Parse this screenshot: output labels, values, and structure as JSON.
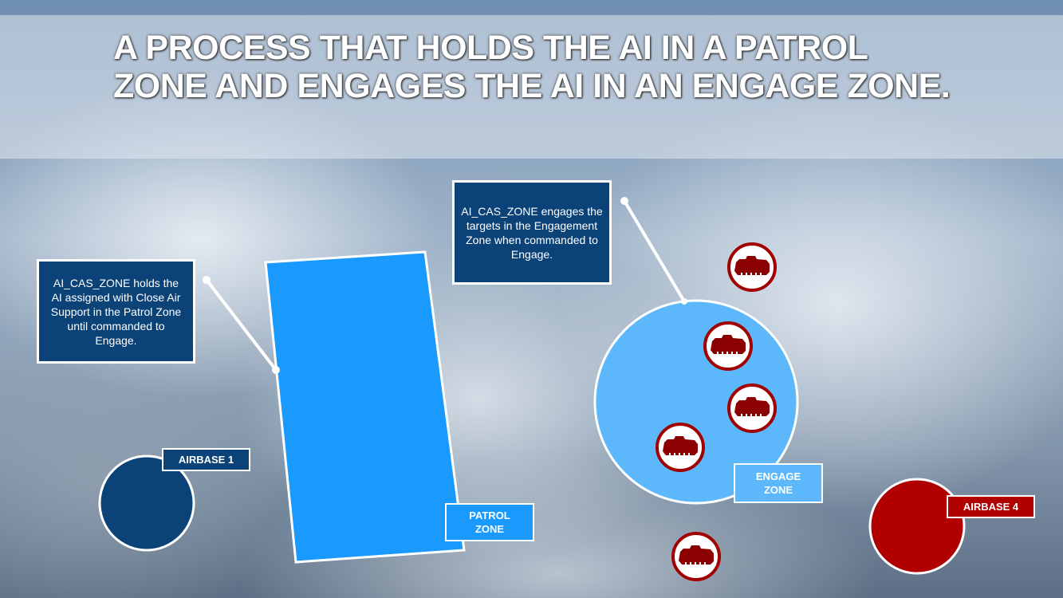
{
  "title": "A PROCESS THAT HOLDS THE AI IN A PATROL ZONE AND ENGAGES THE AI IN AN ENGAGE ZONE.",
  "callouts": {
    "patrol": "AI_CAS_ZONE holds the AI assigned with Close Air Support in the Patrol Zone until commanded to Engage.",
    "engage": "AI_CAS_ZONE engages the targets in the Engagement Zone when commanded to Engage."
  },
  "labels": {
    "airbase1": "AIRBASE 1",
    "airbase4": "AIRBASE 4",
    "patrol_zone": "PATROL ZONE",
    "engage_zone": "ENGAGE ZONE"
  },
  "icons": {
    "target": "armored-vehicle-icon"
  },
  "colors": {
    "dark_blue": "#0b4278",
    "patrol": "#1a9aff",
    "engage": "#5cb8fa",
    "red": "#b00000",
    "target_red": "#8b0000"
  }
}
